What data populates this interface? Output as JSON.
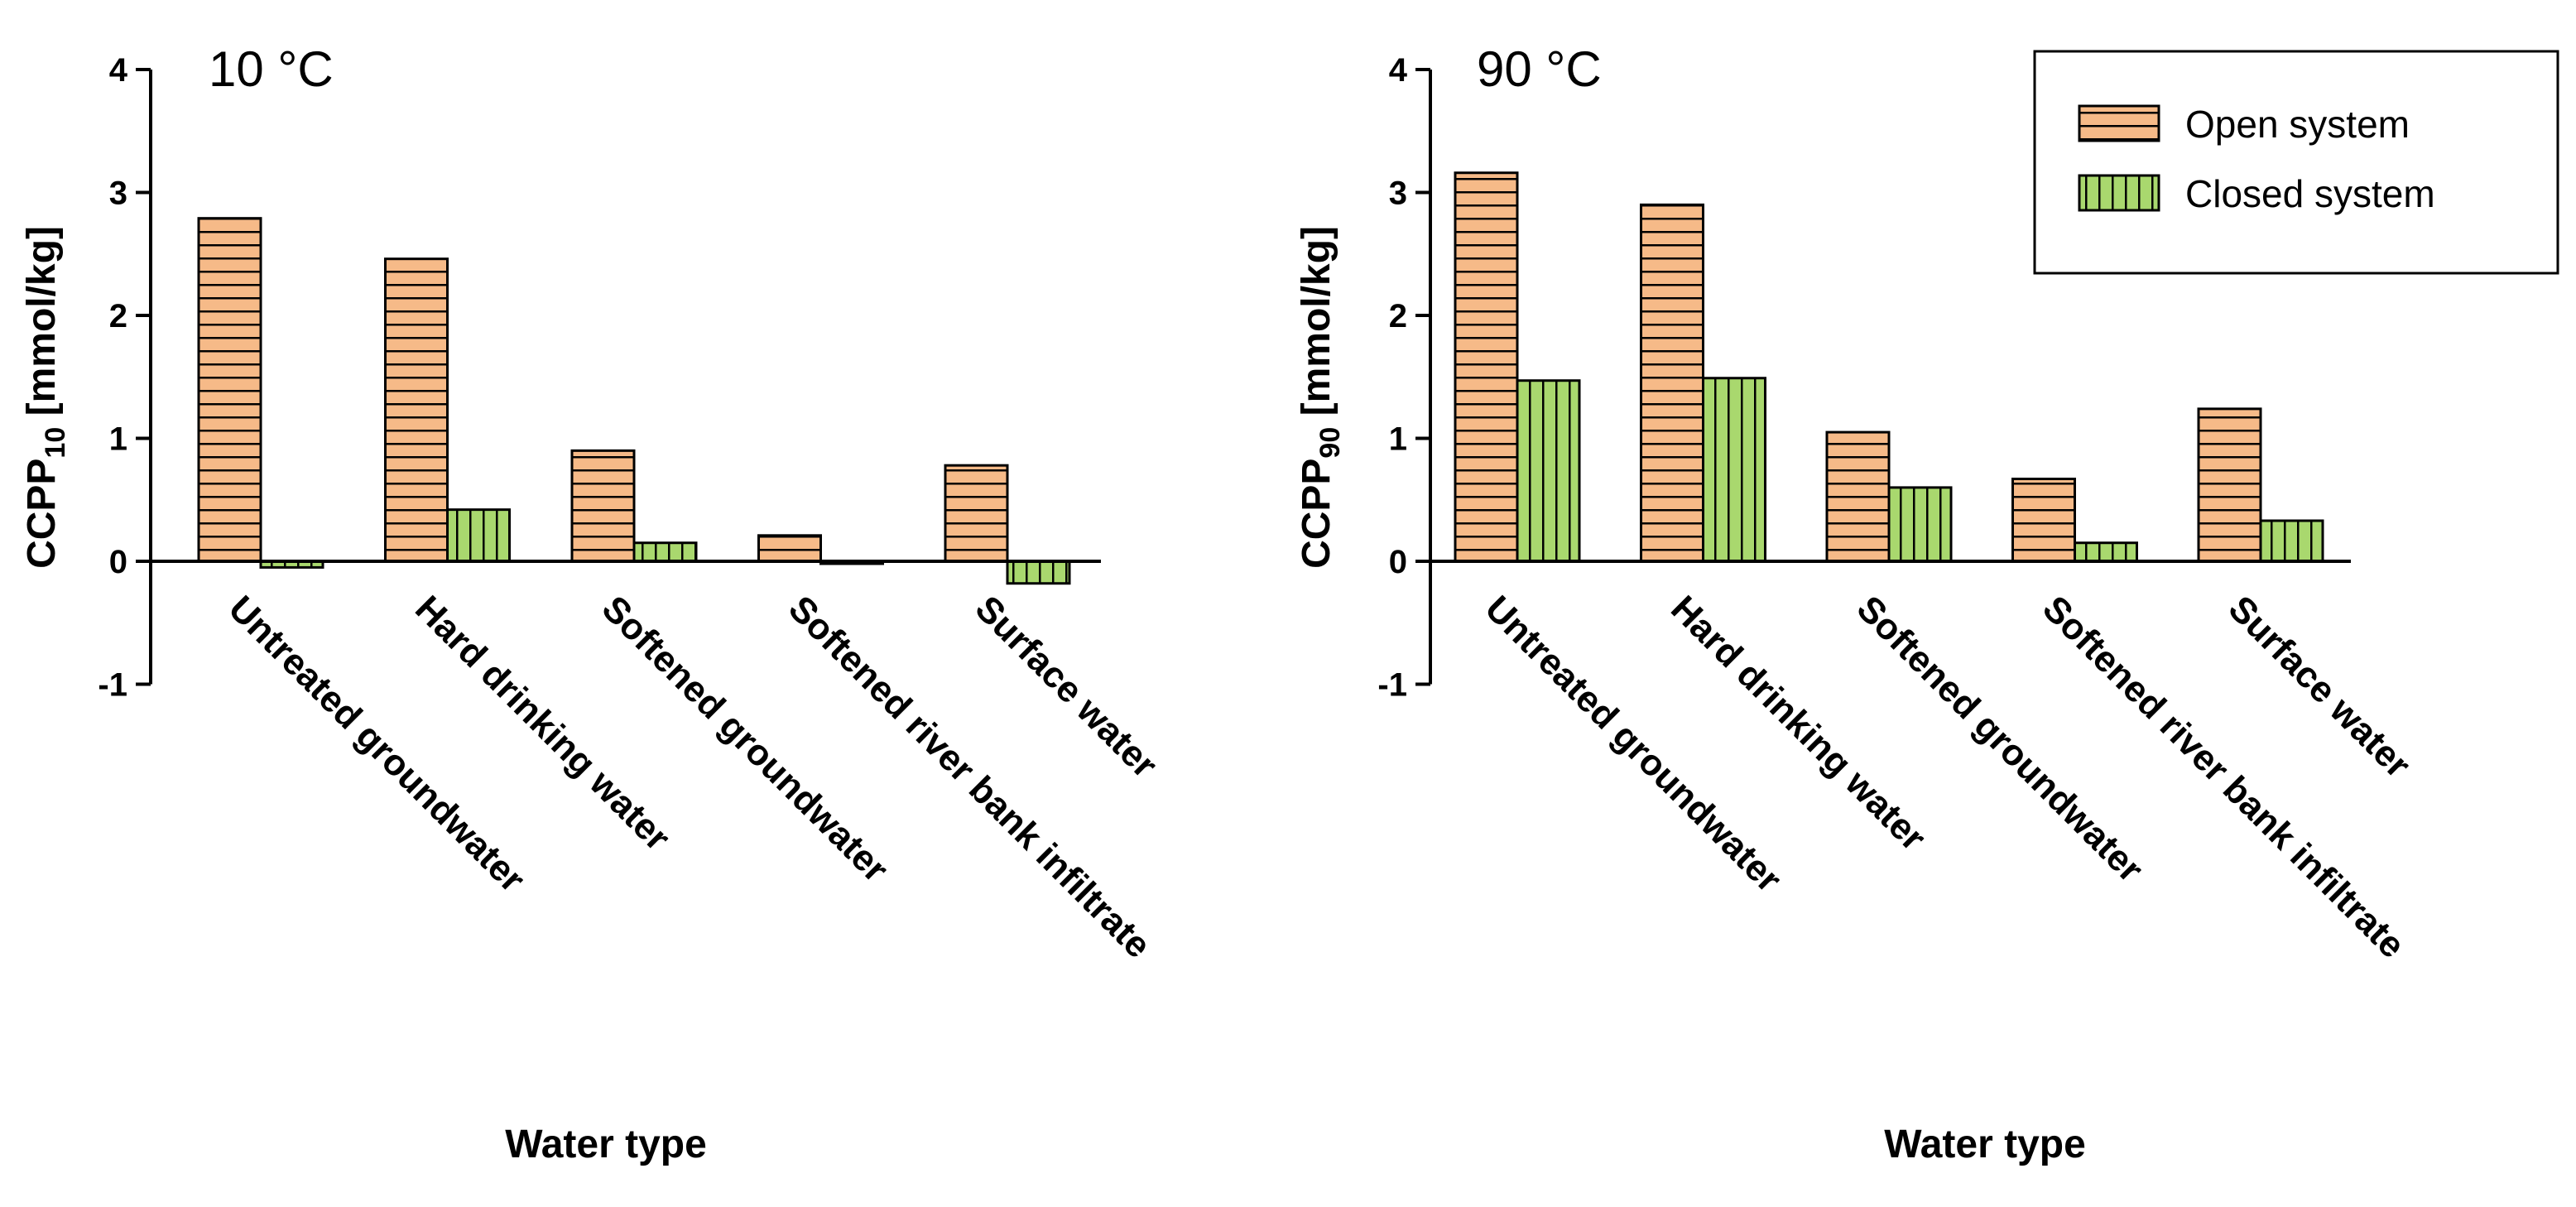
{
  "chart_data": [
    {
      "type": "bar",
      "title": "10 °C",
      "ylabel_main": "CCPP",
      "ylabel_sub": "10",
      "ylabel_unit": " [mmol/kg]",
      "xlabel": "Water type",
      "ylim": [
        -1,
        4
      ],
      "yticks": [
        -1,
        0,
        1,
        2,
        3,
        4
      ],
      "categories": [
        "Untreated groundwater",
        "Hard drinking water",
        "Softened groundwater",
        "Softened river bank infiltrate",
        "Surface water"
      ],
      "series": [
        {
          "name": "Open system",
          "values": [
            2.79,
            2.46,
            0.9,
            0.21,
            0.78
          ]
        },
        {
          "name": "Closed system",
          "values": [
            -0.05,
            0.42,
            0.15,
            -0.02,
            -0.18
          ]
        }
      ]
    },
    {
      "type": "bar",
      "title": "90 °C",
      "ylabel_main": "CCPP",
      "ylabel_sub": "90",
      "ylabel_unit": " [mmol/kg]",
      "xlabel": "Water type",
      "ylim": [
        -1,
        4
      ],
      "yticks": [
        -1,
        0,
        1,
        2,
        3,
        4
      ],
      "categories": [
        "Untreated groundwater",
        "Hard drinking water",
        "Softened groundwater",
        "Softened river bank infiltrate",
        "Surface water"
      ],
      "series": [
        {
          "name": "Open system",
          "values": [
            3.16,
            2.9,
            1.05,
            0.67,
            1.24
          ]
        },
        {
          "name": "Closed system",
          "values": [
            1.47,
            1.49,
            0.6,
            0.15,
            0.33
          ]
        }
      ]
    }
  ],
  "legend": {
    "items": [
      "Open system",
      "Closed system"
    ],
    "position": "top-right"
  },
  "colors": {
    "open_fill": "#f6ba88",
    "closed_fill": "#a9d86e",
    "line": "#000000"
  }
}
